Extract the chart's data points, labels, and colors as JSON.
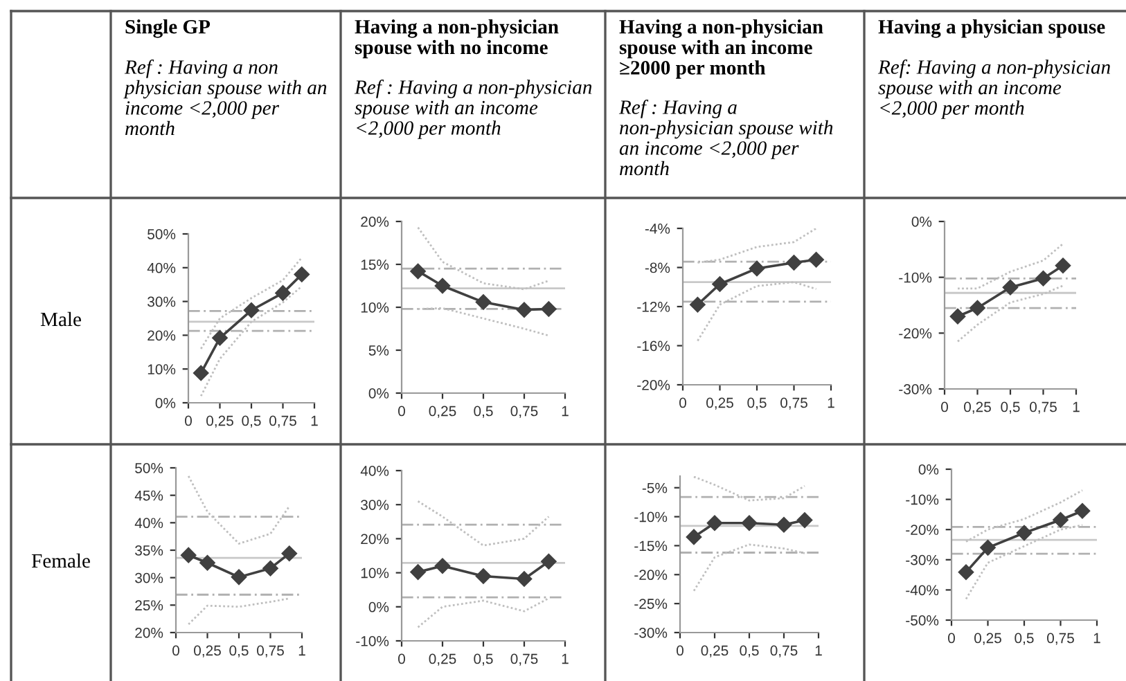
{
  "chart_data": [
    {
      "type": "line",
      "title": "Single GP",
      "subtitle": "Ref : Having a non physician spouse with an income <2,000 per month",
      "ylabel": "Male",
      "x": [
        0.1,
        0.25,
        0.5,
        0.75,
        0.9
      ],
      "xlim": [
        0,
        1
      ],
      "xticks": [
        0,
        {
          "value": 0.25,
          "label": "0,25"
        },
        {
          "value": 0.5,
          "label": "0,5"
        },
        {
          "value": 0.75,
          "label": "0,75"
        },
        1
      ],
      "ylim": [
        0,
        50
      ],
      "yticks": [
        {
          "value": 0,
          "label": "0%"
        },
        {
          "value": 10,
          "label": "10%"
        },
        {
          "value": 20,
          "label": "20%"
        },
        {
          "value": 30,
          "label": "30%"
        },
        {
          "value": 40,
          "label": "40%"
        },
        {
          "value": 50,
          "label": "50%"
        }
      ],
      "grid": false,
      "series": [
        {
          "color": "#bfbfbf",
          "line_style": "dotted",
          "marker": "none",
          "values": [
            16,
            25,
            31,
            36.3,
            43
          ]
        },
        {
          "color": "#bfbfbf",
          "line_style": "dotted",
          "marker": "none",
          "values": [
            2,
            13,
            24,
            29.7,
            34.5
          ]
        },
        {
          "color": "#404040",
          "line_style": "solid",
          "marker": "diamond",
          "values": [
            8.8,
            19.2,
            27.4,
            32.5,
            38
          ]
        }
      ],
      "ref_lines": [
        {
          "axis": "y",
          "value": 24,
          "color": "#c8c8c8",
          "line_style": "solid"
        },
        {
          "axis": "y",
          "value": 27.2,
          "color": "#b0b0b0",
          "line_style": "dashed"
        },
        {
          "axis": "y",
          "value": 21.3,
          "color": "#b0b0b0",
          "line_style": "dashed"
        }
      ]
    },
    {
      "type": "line",
      "title": "Having a non-physician spouse with no income",
      "subtitle": "Ref : Having a non-physician spouse with an income <2,000 per month",
      "x": [
        0.1,
        0.25,
        0.5,
        0.75,
        0.9
      ],
      "xlim": [
        0,
        1
      ],
      "xticks": [
        0,
        {
          "value": 0.25,
          "label": "0,25"
        },
        {
          "value": 0.5,
          "label": "0,5"
        },
        {
          "value": 0.75,
          "label": "0,75"
        },
        1
      ],
      "ylim": [
        0,
        20
      ],
      "yticks": [
        {
          "value": 0,
          "label": "0%"
        },
        {
          "value": 5,
          "label": "5%"
        },
        {
          "value": 10,
          "label": "10%"
        },
        {
          "value": 15,
          "label": "15%"
        },
        {
          "value": 20,
          "label": "20%"
        }
      ],
      "grid": false,
      "series": [
        {
          "color": "#bfbfbf",
          "line_style": "dotted",
          "marker": "none",
          "values": [
            19.3,
            15.3,
            12.8,
            12.1,
            13.1
          ]
        },
        {
          "color": "#bfbfbf",
          "line_style": "dotted",
          "marker": "none",
          "values": [
            9.8,
            9.9,
            8.7,
            7.5,
            6.7
          ]
        },
        {
          "color": "#404040",
          "line_style": "solid",
          "marker": "diamond",
          "values": [
            14.2,
            12.5,
            10.6,
            9.7,
            9.8
          ]
        }
      ],
      "ref_lines": [
        {
          "axis": "y",
          "value": 12.2,
          "color": "#c8c8c8",
          "line_style": "solid"
        },
        {
          "axis": "y",
          "value": 14.5,
          "color": "#b0b0b0",
          "line_style": "dashed"
        },
        {
          "axis": "y",
          "value": 9.8,
          "color": "#b0b0b0",
          "line_style": "dashed"
        }
      ]
    },
    {
      "type": "line",
      "title": "Having a non-physician spouse with an income ≥2000 per month",
      "subtitle": "Ref : Having a non-physician spouse with an income <2,000 per month",
      "x": [
        0.1,
        0.25,
        0.5,
        0.75,
        0.9
      ],
      "xlim": [
        0,
        1
      ],
      "xticks": [
        0,
        {
          "value": 0.25,
          "label": "0,25"
        },
        {
          "value": 0.5,
          "label": "0,5"
        },
        {
          "value": 0.75,
          "label": "0,75"
        },
        1
      ],
      "ylim": [
        -20,
        -4
      ],
      "yticks": [
        {
          "value": -20,
          "label": "-20%"
        },
        {
          "value": -16,
          "label": "-16%"
        },
        {
          "value": -12,
          "label": "-12%"
        },
        {
          "value": -8,
          "label": "-8%"
        },
        {
          "value": -4,
          "label": "-4%"
        }
      ],
      "grid": false,
      "series": [
        {
          "color": "#bfbfbf",
          "line_style": "dotted",
          "marker": "none",
          "values": [
            -7.5,
            -7.2,
            -5.9,
            -5.4,
            -4
          ]
        },
        {
          "color": "#bfbfbf",
          "line_style": "dotted",
          "marker": "none",
          "values": [
            -15.5,
            -11.8,
            -9.9,
            -9.5,
            -10.2
          ]
        },
        {
          "color": "#404040",
          "line_style": "solid",
          "marker": "diamond",
          "values": [
            -11.8,
            -9.7,
            -8.1,
            -7.5,
            -7.2
          ]
        }
      ],
      "ref_lines": [
        {
          "axis": "y",
          "value": -9.5,
          "color": "#c8c8c8",
          "line_style": "solid"
        },
        {
          "axis": "y",
          "value": -7.4,
          "color": "#b0b0b0",
          "line_style": "dashed"
        },
        {
          "axis": "y",
          "value": -11.5,
          "color": "#b0b0b0",
          "line_style": "dashed"
        }
      ]
    },
    {
      "type": "line",
      "title": "Having a physician spouse",
      "subtitle": "Ref: Having a non-physician spouse with an income <2,000 per month",
      "x": [
        0.1,
        0.25,
        0.5,
        0.75,
        0.9
      ],
      "xlim": [
        0,
        1
      ],
      "xticks": [
        0,
        {
          "value": 0.25,
          "label": "0,25"
        },
        {
          "value": 0.5,
          "label": "0,5"
        },
        {
          "value": 0.75,
          "label": "0,75"
        },
        1
      ],
      "ylim": [
        -30,
        0
      ],
      "yticks": [
        {
          "value": -30,
          "label": "-30%"
        },
        {
          "value": -20,
          "label": "-20%"
        },
        {
          "value": -10,
          "label": "-10%"
        },
        {
          "value": 0,
          "label": "0%"
        }
      ],
      "grid": false,
      "series": [
        {
          "color": "#bfbfbf",
          "line_style": "dotted",
          "marker": "none",
          "values": [
            -12,
            -12,
            -9,
            -7,
            -4
          ]
        },
        {
          "color": "#bfbfbf",
          "line_style": "dotted",
          "marker": "none",
          "values": [
            -21.5,
            -18.5,
            -14.5,
            -13,
            -11.5
          ]
        },
        {
          "color": "#404040",
          "line_style": "solid",
          "marker": "diamond",
          "values": [
            -17,
            -15.5,
            -11.8,
            -10.2,
            -7.9
          ]
        }
      ],
      "ref_lines": [
        {
          "axis": "y",
          "value": -12.8,
          "color": "#c8c8c8",
          "line_style": "solid"
        },
        {
          "axis": "y",
          "value": -10.2,
          "color": "#b0b0b0",
          "line_style": "dashed"
        },
        {
          "axis": "y",
          "value": -15.5,
          "color": "#b0b0b0",
          "line_style": "dashed"
        }
      ]
    },
    {
      "type": "line",
      "ylabel": "Female",
      "x": [
        0.1,
        0.25,
        0.5,
        0.75,
        0.9
      ],
      "xlim": [
        0,
        1
      ],
      "xticks": [
        0,
        {
          "value": 0.25,
          "label": "0,25"
        },
        {
          "value": 0.5,
          "label": "0,5"
        },
        {
          "value": 0.75,
          "label": "0,75"
        },
        1
      ],
      "ylim": [
        20,
        50
      ],
      "yticks": [
        {
          "value": 20,
          "label": "20%"
        },
        {
          "value": 25,
          "label": "25%"
        },
        {
          "value": 30,
          "label": "30%"
        },
        {
          "value": 35,
          "label": "35%"
        },
        {
          "value": 40,
          "label": "40%"
        },
        {
          "value": 45,
          "label": "45%"
        },
        {
          "value": 50,
          "label": "50%"
        }
      ],
      "grid": false,
      "series": [
        {
          "color": "#bfbfbf",
          "line_style": "dotted",
          "marker": "none",
          "values": [
            48.5,
            42,
            36.2,
            38,
            43
          ]
        },
        {
          "color": "#bfbfbf",
          "line_style": "dotted",
          "marker": "none",
          "values": [
            21.5,
            24.9,
            24.7,
            25.6,
            26.2
          ]
        },
        {
          "color": "#404040",
          "line_style": "solid",
          "marker": "diamond",
          "values": [
            34.1,
            32.7,
            30.1,
            31.7,
            34.4
          ]
        }
      ],
      "ref_lines": [
        {
          "axis": "y",
          "value": 33.6,
          "color": "#c8c8c8",
          "line_style": "solid"
        },
        {
          "axis": "y",
          "value": 41.1,
          "color": "#b0b0b0",
          "line_style": "dashed"
        },
        {
          "axis": "y",
          "value": 26.9,
          "color": "#b0b0b0",
          "line_style": "dashed"
        }
      ]
    },
    {
      "type": "line",
      "x": [
        0.1,
        0.25,
        0.5,
        0.75,
        0.9
      ],
      "xlim": [
        0,
        1
      ],
      "xticks": [
        0,
        {
          "value": 0.25,
          "label": "0,25"
        },
        {
          "value": 0.5,
          "label": "0,5"
        },
        {
          "value": 0.75,
          "label": "0,75"
        },
        1
      ],
      "ylim": [
        -10,
        40
      ],
      "yticks": [
        {
          "value": -10,
          "label": "-10%"
        },
        {
          "value": 0,
          "label": "0%"
        },
        {
          "value": 10,
          "label": "10%"
        },
        {
          "value": 20,
          "label": "20%"
        },
        {
          "value": 30,
          "label": "30%"
        },
        {
          "value": 40,
          "label": "40%"
        }
      ],
      "grid": false,
      "series": [
        {
          "color": "#bfbfbf",
          "line_style": "dotted",
          "marker": "none",
          "values": [
            31,
            26.5,
            18,
            20,
            26.5
          ]
        },
        {
          "color": "#bfbfbf",
          "line_style": "dotted",
          "marker": "none",
          "values": [
            -6,
            0,
            1.8,
            -1.3,
            2.5
          ]
        },
        {
          "color": "#404040",
          "line_style": "solid",
          "marker": "diamond",
          "values": [
            10.2,
            12,
            9,
            8.2,
            13.3
          ]
        }
      ],
      "ref_lines": [
        {
          "axis": "y",
          "value": 12.9,
          "color": "#c8c8c8",
          "line_style": "solid"
        },
        {
          "axis": "y",
          "value": 24.1,
          "color": "#b0b0b0",
          "line_style": "dashed"
        },
        {
          "axis": "y",
          "value": 2.8,
          "color": "#b0b0b0",
          "line_style": "dashed"
        }
      ]
    },
    {
      "type": "line",
      "x": [
        0.1,
        0.25,
        0.5,
        0.75,
        0.9
      ],
      "xlim": [
        0,
        1
      ],
      "xticks": [
        0,
        {
          "value": 0.25,
          "label": "0,25"
        },
        {
          "value": 0.5,
          "label": "0,5"
        },
        {
          "value": 0.75,
          "label": "0,75"
        },
        1
      ],
      "ylim": [
        -30,
        -3
      ],
      "yticks": [
        {
          "value": -30,
          "label": "-30%"
        },
        {
          "value": -25,
          "label": "-25%"
        },
        {
          "value": -20,
          "label": "-20%"
        },
        {
          "value": -15,
          "label": "-15%"
        },
        {
          "value": -10,
          "label": "-10%"
        },
        {
          "value": -5,
          "label": "-5%"
        }
      ],
      "grid": false,
      "series": [
        {
          "color": "#bfbfbf",
          "line_style": "dotted",
          "marker": "none",
          "values": [
            -3.1,
            -4.5,
            -7.2,
            -6.8,
            -4.7
          ]
        },
        {
          "color": "#bfbfbf",
          "line_style": "dotted",
          "marker": "none",
          "values": [
            -22.8,
            -17,
            -14.8,
            -15.5,
            -16.3
          ]
        },
        {
          "color": "#404040",
          "line_style": "solid",
          "marker": "diamond",
          "values": [
            -13.5,
            -11.1,
            -11.1,
            -11.4,
            -10.6
          ]
        }
      ],
      "ref_lines": [
        {
          "axis": "y",
          "value": -11.6,
          "color": "#c8c8c8",
          "line_style": "solid"
        },
        {
          "axis": "y",
          "value": -6.6,
          "color": "#b0b0b0",
          "line_style": "dashed"
        },
        {
          "axis": "y",
          "value": -16.2,
          "color": "#b0b0b0",
          "line_style": "dashed"
        }
      ]
    },
    {
      "type": "line",
      "x": [
        0.1,
        0.25,
        0.5,
        0.75,
        0.9
      ],
      "xlim": [
        0,
        1
      ],
      "xticks": [
        0,
        {
          "value": 0.25,
          "label": "0,25"
        },
        {
          "value": 0.5,
          "label": "0,5"
        },
        {
          "value": 0.75,
          "label": "0,75"
        },
        1
      ],
      "ylim": [
        -50,
        0
      ],
      "yticks": [
        {
          "value": -50,
          "label": "-50%"
        },
        {
          "value": -40,
          "label": "-40%"
        },
        {
          "value": -30,
          "label": "-30%"
        },
        {
          "value": -20,
          "label": "-20%"
        },
        {
          "value": -10,
          "label": "-10%"
        },
        {
          "value": 0,
          "label": "0%"
        }
      ],
      "grid": false,
      "series": [
        {
          "color": "#bfbfbf",
          "line_style": "dotted",
          "marker": "none",
          "values": [
            -24,
            -20,
            -16.5,
            -11,
            -7
          ]
        },
        {
          "color": "#bfbfbf",
          "line_style": "dotted",
          "marker": "none",
          "values": [
            -43,
            -31,
            -25.5,
            -20,
            -18.5
          ]
        },
        {
          "color": "#404040",
          "line_style": "solid",
          "marker": "diamond",
          "values": [
            -34.1,
            -26,
            -21.1,
            -16.8,
            -13.8
          ]
        }
      ],
      "ref_lines": [
        {
          "axis": "y",
          "value": -23.4,
          "color": "#c8c8c8",
          "line_style": "solid"
        },
        {
          "axis": "y",
          "value": -19.1,
          "color": "#b0b0b0",
          "line_style": "dashed"
        },
        {
          "axis": "y",
          "value": -28,
          "color": "#b0b0b0",
          "line_style": "dashed"
        }
      ]
    }
  ]
}
